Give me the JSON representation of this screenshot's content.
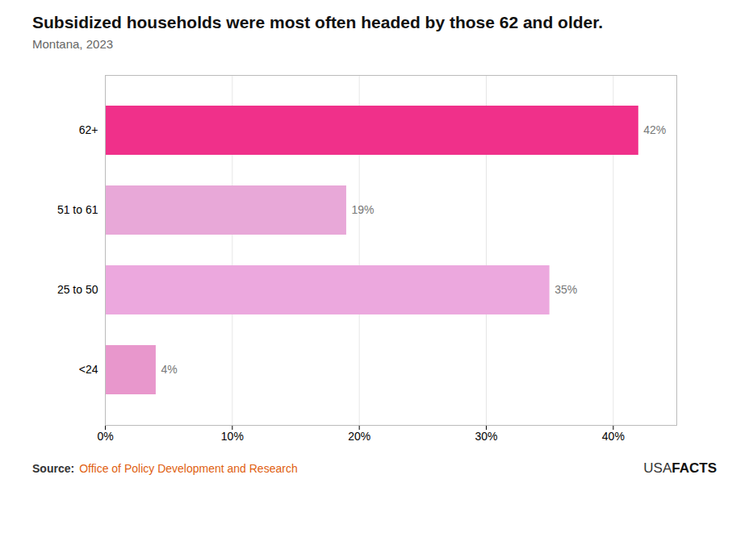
{
  "chart_data": {
    "type": "bar",
    "orientation": "horizontal",
    "title": "Subsidized households were most often headed by those 62 and older.",
    "subtitle": "Montana, 2023",
    "categories": [
      "62+",
      "51 to 61",
      "25 to 50",
      "<24"
    ],
    "values": [
      42,
      19,
      35,
      4
    ],
    "value_labels": [
      "42%",
      "19%",
      "35%",
      "4%"
    ],
    "data_labels": true,
    "colors": [
      "#f0308a",
      "#e8a8d8",
      "#eca8de",
      "#e897cc"
    ],
    "xlim": [
      0,
      45
    ],
    "xticks": [
      {
        "value": 0,
        "label": "0%"
      },
      {
        "value": 10,
        "label": "10%"
      },
      {
        "value": 20,
        "label": "20%"
      },
      {
        "value": 30,
        "label": "30%"
      },
      {
        "value": 40,
        "label": "40%"
      }
    ],
    "grid": true,
    "annotations": [
      "Source:",
      "Office of Policy Development and Research",
      "USA",
      "FACTS"
    ]
  }
}
